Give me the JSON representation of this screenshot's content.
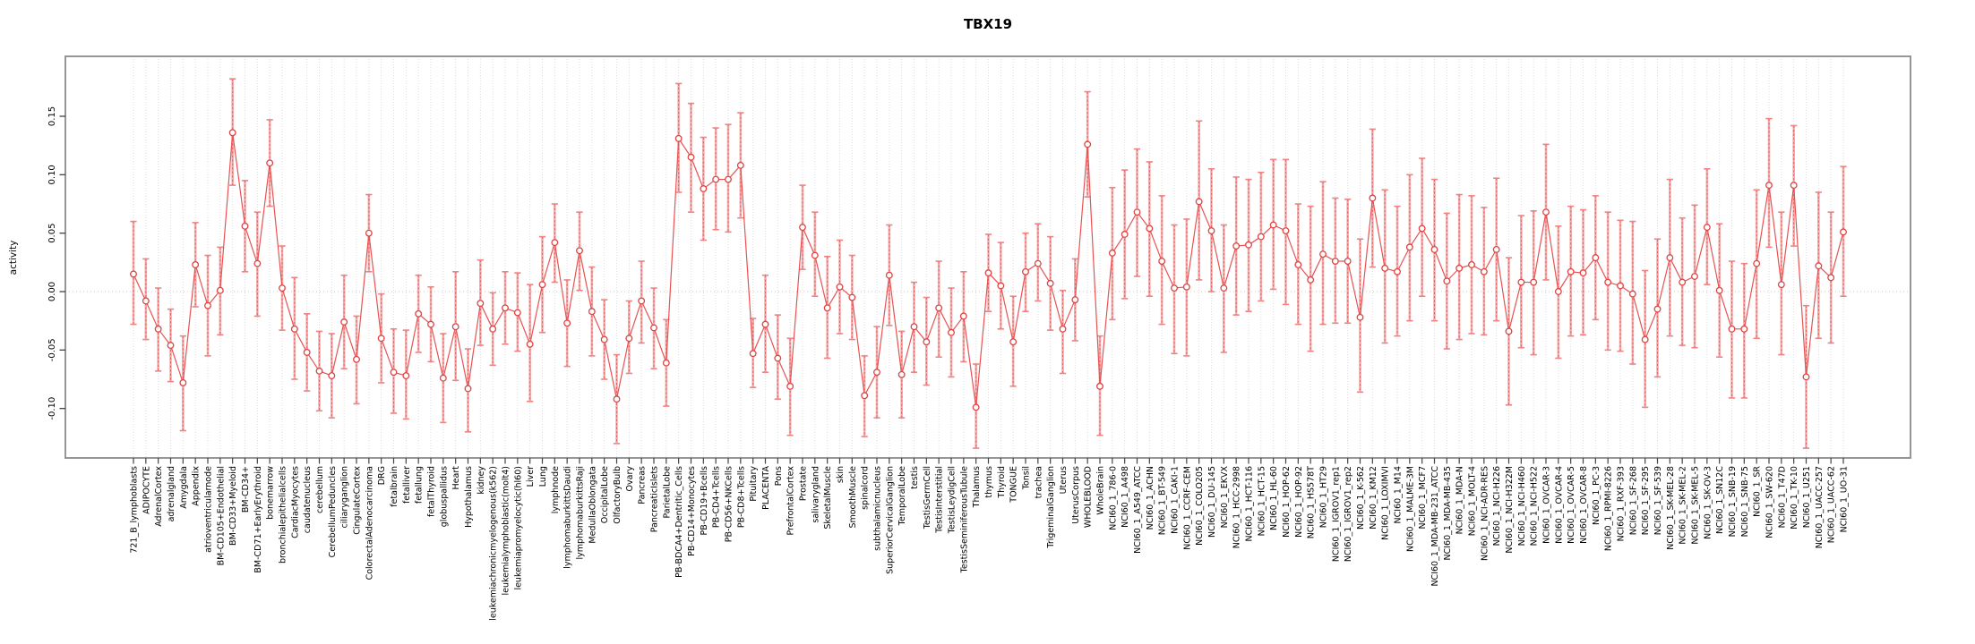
{
  "chart_data": {
    "type": "line",
    "title": "TBX19",
    "xlabel": "",
    "ylabel": "activity",
    "ylim": [
      -0.142,
      0.201
    ],
    "yticks": [
      "-0.10",
      "-0.05",
      "0.00",
      "0.05",
      "0.10",
      "0.15"
    ],
    "ytick_values": [
      -0.1,
      -0.05,
      0.0,
      0.05,
      0.1,
      0.15
    ],
    "grid": "vertical dashed per category, dotted zero line",
    "legend_position": "none",
    "marker": "open-circle",
    "point_color": "#e04343",
    "line_color": "#e85252",
    "errorbar_color": "#f3a6a6",
    "errorbar_dash_color": "#e25555",
    "box_color": "#8a8a8a",
    "gridline_color": "#dcdcdc",
    "zero_line_color": "#c9c9c9",
    "categories": [
      "721_B_lymphoblasts",
      "ADIPOCYTE",
      "AdrenalCortex",
      "adrenalgland",
      "Amygdala",
      "Appendix",
      "atrioventricularnode",
      "BM-CD105+Endothelial",
      "BM-CD33+Myeloid",
      "BM-CD34+",
      "BM-CD71+EarlyErythroid",
      "bonemarrow",
      "bronchialepithelialcells",
      "CardiacMyocytes",
      "caudatenucleus",
      "cerebellum",
      "CerebellumPeduncles",
      "ciliaryganglion",
      "CingulateCortex",
      "ColorectalAdenocarcinoma",
      "DRG",
      "fetalbrain",
      "fetalliver",
      "fetallung",
      "fetalThyroid",
      "globuspallidus",
      "Heart",
      "Hypothalamus",
      "kidney",
      "leukemiachronicmyelogenous(k562)",
      "leukemialymphoblastic(molt4)",
      "leukemiapromyelocytic(hl60)",
      "Liver",
      "Lung",
      "lymphnode",
      "lymphomaburkittsDaudi",
      "lymphomaburkittsRaji",
      "MedullaOblongata",
      "OccipitalLobe",
      "OlfactoryBulb",
      "Ovary",
      "Pancreas",
      "PancreaticIslets",
      "ParietalLobe",
      "PB-BDCA4+Dentritic_Cells",
      "PB-CD14+Monocytes",
      "PB-CD19+Bcells",
      "PB-CD4+Tcells",
      "PB-CD56+NKCells",
      "PB-CD8+Tcells",
      "Pituitary",
      "PLACENTA",
      "Pons",
      "PrefrontalCortex",
      "Prostate",
      "salivarygland",
      "SkeletalMuscle",
      "skin",
      "SmoothMuscle",
      "spinalcord",
      "subthalamicnucleus",
      "SuperiorCervicalGanglion",
      "TemporalLobe",
      "testis",
      "TestisGermCell",
      "TestisInterstitial",
      "TestisLeydigCell",
      "TestisSeminiferousTubule",
      "Thalamus",
      "thymus",
      "Thyroid",
      "TONGUE",
      "Tonsil",
      "trachea",
      "TrigeminalGanglion",
      "Uterus",
      "UterusCorpus",
      "WHOLEBLOOD",
      "WholeBrain",
      "NCI60_1_786-0",
      "NCI60_1_A498",
      "NCI60_1_A549_ATCC",
      "NCI60_1_ACHN",
      "NCI60_1_BT-549",
      "NCI60_1_CAKI-1",
      "NCI60_1_CCRF-CEM",
      "NCI60_1_COLO205",
      "NCI60_1_DU-145",
      "NCI60_1_EKVX",
      "NCI60_1_HCC-2998",
      "NCI60_1_HCT-116",
      "NCI60_1_HCT-15",
      "NCI60_1_HL-60",
      "NCI60_1_HOP-62",
      "NCI60_1_HOP-92",
      "NCI60_1_HS578T",
      "NCI60_1_HT29",
      "NCI60_1_IGROV1_rep1",
      "NCI60_1_IGROV1_rep2",
      "NCI60_1_K-562",
      "NCI60_1_KM12",
      "NCI60_1_LOXIMVI",
      "NCI60_1_M14",
      "NCI60_1_MALME-3M",
      "NCI60_1_MCF7",
      "NCI60_1_MDA-MB-231_ATCC",
      "NCI60_1_MDA-MB-435",
      "NCI60_1_MDA-N",
      "NCI60_1_MOLT-4",
      "NCI60_1_NCI-ADR-RES",
      "NCI60_1_NCI-H226",
      "NCI60_1_NCI-H322M",
      "NCI60_1_NCI-H460",
      "NCI60_1_NCI-H522",
      "NCI60_1_OVCAR-3",
      "NCI60_1_OVCAR-4",
      "NCI60_1_OVCAR-5",
      "NCI60_1_OVCAR-8",
      "NCI60_1_PC-3",
      "NCI60_1_RPMI-8226",
      "NCI60_1_RXF-393",
      "NCI60_1_SF-268",
      "NCI60_1_SF-295",
      "NCI60_1_SF-539",
      "NCI60_1_SK-MEL-28",
      "NCI60_1_SK-MEL-2",
      "NCI60_1_SK-MEL-5",
      "NCI60_1_SK-OV-3",
      "NCI60_1_SN12C",
      "NCI60_1_SNB-19",
      "NCI60_1_SNB-75",
      "NCI60_1_SR",
      "NCI60_1_SW-620",
      "NCI60_1_T47D",
      "NCI60_1_TK-10",
      "NCI60_1_U251",
      "NCI60_1_UACC-257",
      "NCI60_1_UACC-62",
      "NCI60_1_UO-31"
    ],
    "values": [
      0.015,
      -0.008,
      -0.032,
      -0.046,
      -0.078,
      0.023,
      -0.012,
      0.001,
      0.136,
      0.056,
      0.024,
      0.11,
      0.003,
      -0.032,
      -0.052,
      -0.068,
      -0.072,
      -0.026,
      -0.058,
      0.05,
      -0.04,
      -0.069,
      -0.072,
      -0.019,
      -0.028,
      -0.074,
      -0.03,
      -0.083,
      -0.01,
      -0.032,
      -0.014,
      -0.018,
      -0.045,
      0.006,
      0.042,
      -0.027,
      0.035,
      -0.017,
      -0.041,
      -0.092,
      -0.04,
      -0.008,
      -0.031,
      -0.061,
      0.131,
      0.115,
      0.088,
      0.096,
      0.096,
      0.108,
      -0.053,
      -0.028,
      -0.057,
      -0.081,
      0.055,
      0.031,
      -0.014,
      0.004,
      -0.005,
      -0.089,
      -0.069,
      0.014,
      -0.071,
      -0.03,
      -0.043,
      -0.014,
      -0.035,
      -0.021,
      -0.099,
      0.016,
      0.005,
      -0.043,
      0.017,
      0.024,
      0.007,
      -0.032,
      -0.007,
      0.126,
      -0.081,
      0.033,
      0.049,
      0.068,
      0.054,
      0.026,
      0.003,
      0.004,
      0.077,
      0.052,
      0.003,
      0.039,
      0.04,
      0.047,
      0.057,
      0.052,
      0.023,
      0.01,
      0.032,
      0.026,
      0.026,
      -0.022,
      0.08,
      0.02,
      0.017,
      0.038,
      0.054,
      0.036,
      0.009,
      0.02,
      0.023,
      0.017,
      0.036,
      -0.034,
      0.008,
      0.008,
      0.068,
      0.0,
      0.017,
      0.016,
      0.029,
      0.008,
      0.005,
      -0.002,
      -0.041,
      -0.015,
      0.029,
      0.008,
      0.013,
      0.055,
      0.001,
      -0.032,
      -0.032,
      0.024,
      0.091,
      0.006,
      0.091,
      -0.073,
      0.022,
      0.012,
      0.051
    ],
    "err_lo": [
      -0.028,
      -0.041,
      -0.068,
      -0.077,
      -0.119,
      -0.013,
      -0.055,
      -0.037,
      0.091,
      0.017,
      -0.021,
      0.073,
      -0.033,
      -0.075,
      -0.085,
      -0.102,
      -0.108,
      -0.066,
      -0.096,
      0.017,
      -0.078,
      -0.104,
      -0.109,
      -0.052,
      -0.06,
      -0.112,
      -0.076,
      -0.12,
      -0.046,
      -0.063,
      -0.045,
      -0.051,
      -0.094,
      -0.035,
      0.008,
      -0.064,
      0.001,
      -0.055,
      -0.075,
      -0.13,
      -0.07,
      -0.044,
      -0.066,
      -0.098,
      0.085,
      0.068,
      0.044,
      0.053,
      0.051,
      0.063,
      -0.082,
      -0.069,
      -0.092,
      -0.123,
      0.019,
      -0.004,
      -0.057,
      -0.036,
      -0.041,
      -0.124,
      -0.108,
      -0.029,
      -0.108,
      -0.069,
      -0.08,
      -0.056,
      -0.073,
      -0.06,
      -0.134,
      -0.017,
      -0.032,
      -0.081,
      -0.017,
      -0.008,
      -0.033,
      -0.07,
      -0.042,
      0.081,
      -0.123,
      -0.024,
      -0.006,
      0.013,
      -0.004,
      -0.028,
      -0.053,
      -0.055,
      0.01,
      0.0,
      -0.052,
      -0.02,
      -0.017,
      -0.008,
      0.002,
      -0.011,
      -0.028,
      -0.051,
      -0.028,
      -0.027,
      -0.027,
      -0.086,
      0.021,
      -0.044,
      -0.038,
      -0.025,
      -0.004,
      -0.025,
      -0.049,
      -0.041,
      -0.036,
      -0.037,
      -0.025,
      -0.097,
      -0.048,
      -0.054,
      0.01,
      -0.057,
      -0.038,
      -0.037,
      -0.024,
      -0.05,
      -0.051,
      -0.062,
      -0.099,
      -0.073,
      -0.038,
      -0.046,
      -0.048,
      0.006,
      -0.056,
      -0.091,
      -0.091,
      -0.04,
      0.038,
      -0.054,
      0.039,
      -0.134,
      -0.04,
      -0.044,
      -0.004
    ],
    "err_hi": [
      0.06,
      0.028,
      0.003,
      -0.015,
      -0.038,
      0.059,
      0.031,
      0.038,
      0.182,
      0.095,
      0.068,
      0.147,
      0.039,
      0.012,
      -0.019,
      -0.034,
      -0.036,
      0.014,
      -0.021,
      0.083,
      -0.002,
      -0.032,
      -0.033,
      0.014,
      0.004,
      -0.036,
      0.017,
      -0.049,
      0.027,
      -0.001,
      0.017,
      0.016,
      0.006,
      0.047,
      0.075,
      0.01,
      0.068,
      0.021,
      -0.007,
      -0.054,
      -0.008,
      0.026,
      0.003,
      -0.024,
      0.178,
      0.161,
      0.132,
      0.14,
      0.143,
      0.153,
      -0.023,
      0.014,
      -0.02,
      -0.04,
      0.091,
      0.068,
      0.03,
      0.044,
      0.031,
      -0.055,
      -0.03,
      0.057,
      -0.034,
      0.008,
      -0.005,
      0.026,
      0.003,
      0.017,
      -0.062,
      0.049,
      0.042,
      -0.004,
      0.05,
      0.058,
      0.047,
      0.001,
      0.028,
      0.171,
      -0.038,
      0.089,
      0.104,
      0.122,
      0.111,
      0.082,
      0.057,
      0.062,
      0.146,
      0.105,
      0.057,
      0.098,
      0.096,
      0.102,
      0.113,
      0.113,
      0.075,
      0.073,
      0.094,
      0.08,
      0.079,
      0.045,
      0.139,
      0.087,
      0.073,
      0.1,
      0.114,
      0.096,
      0.067,
      0.083,
      0.082,
      0.072,
      0.097,
      0.029,
      0.065,
      0.069,
      0.126,
      0.056,
      0.073,
      0.07,
      0.082,
      0.068,
      0.061,
      0.06,
      0.018,
      0.045,
      0.096,
      0.063,
      0.074,
      0.105,
      0.058,
      0.026,
      0.024,
      0.087,
      0.148,
      0.068,
      0.142,
      -0.012,
      0.085,
      0.068,
      0.107
    ]
  }
}
